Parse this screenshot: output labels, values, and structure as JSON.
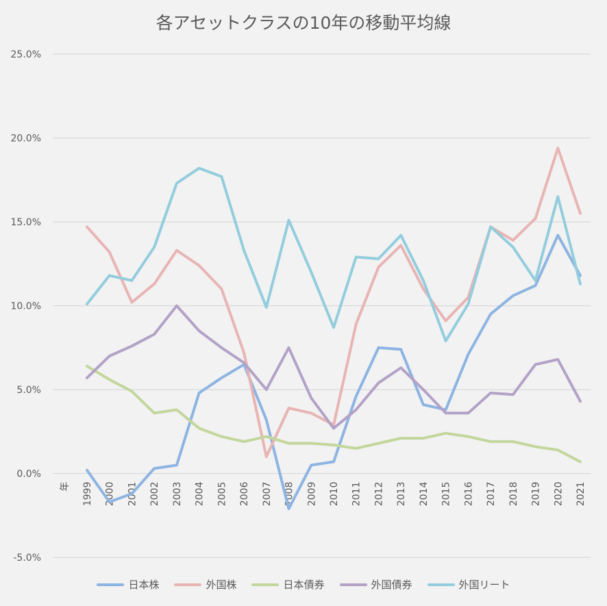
{
  "chart_data": {
    "type": "line",
    "title": "各アセットクラスの10年の移動平均線",
    "xlabel": "年",
    "ylabel": "",
    "ylim": [
      -0.05,
      0.25
    ],
    "yticks": [
      -0.05,
      0,
      0.05,
      0.1,
      0.15,
      0.2,
      0.25
    ],
    "ytick_labels": [
      "-5.0%",
      "0.0%",
      "5.0%",
      "10.0%",
      "15.0%",
      "20.0%",
      "25.0%"
    ],
    "grid": true,
    "legend_position": "bottom",
    "categories": [
      "1999",
      "2000",
      "2001",
      "2002",
      "2003",
      "2004",
      "2005",
      "2006",
      "2007",
      "2008",
      "2009",
      "2010",
      "2011",
      "2012",
      "2013",
      "2014",
      "2015",
      "2016",
      "2017",
      "2018",
      "2019",
      "2020",
      "2021"
    ],
    "series": [
      {
        "name": "日本株",
        "color": "#8db4e2",
        "values": [
          0.002,
          -0.017,
          -0.012,
          0.003,
          0.005,
          0.048,
          0.057,
          0.065,
          0.032,
          -0.021,
          0.005,
          0.007,
          0.046,
          0.075,
          0.074,
          0.041,
          0.038,
          0.071,
          0.095,
          0.106,
          0.112,
          0.142,
          0.118
        ]
      },
      {
        "name": "外国株",
        "color": "#e8b4b4",
        "values": [
          0.147,
          0.132,
          0.102,
          0.113,
          0.133,
          0.124,
          0.11,
          0.072,
          0.01,
          0.039,
          0.036,
          0.029,
          0.089,
          0.123,
          0.136,
          0.11,
          0.091,
          0.105,
          0.147,
          0.139,
          0.152,
          0.194,
          0.155
        ]
      },
      {
        "name": "日本債券",
        "color": "#c3d69b",
        "values": [
          0.064,
          0.056,
          0.049,
          0.036,
          0.038,
          0.027,
          0.022,
          0.019,
          0.022,
          0.018,
          0.018,
          0.017,
          0.015,
          0.018,
          0.021,
          0.021,
          0.024,
          0.022,
          0.019,
          0.019,
          0.016,
          0.014,
          0.007
        ]
      },
      {
        "name": "外国債券",
        "color": "#b3a2c7",
        "values": [
          0.057,
          0.07,
          0.076,
          0.083,
          0.1,
          0.085,
          0.075,
          0.066,
          0.05,
          0.075,
          0.045,
          0.027,
          0.038,
          0.054,
          0.063,
          0.05,
          0.036,
          0.036,
          0.048,
          0.047,
          0.065,
          0.068,
          0.043
        ]
      },
      {
        "name": "外国リート",
        "color": "#93cddd",
        "values": [
          0.101,
          0.118,
          0.115,
          0.135,
          0.173,
          0.182,
          0.177,
          0.133,
          0.099,
          0.151,
          0.12,
          0.087,
          0.129,
          0.128,
          0.142,
          0.115,
          0.079,
          0.101,
          0.147,
          0.135,
          0.115,
          0.165,
          0.113
        ]
      }
    ]
  }
}
